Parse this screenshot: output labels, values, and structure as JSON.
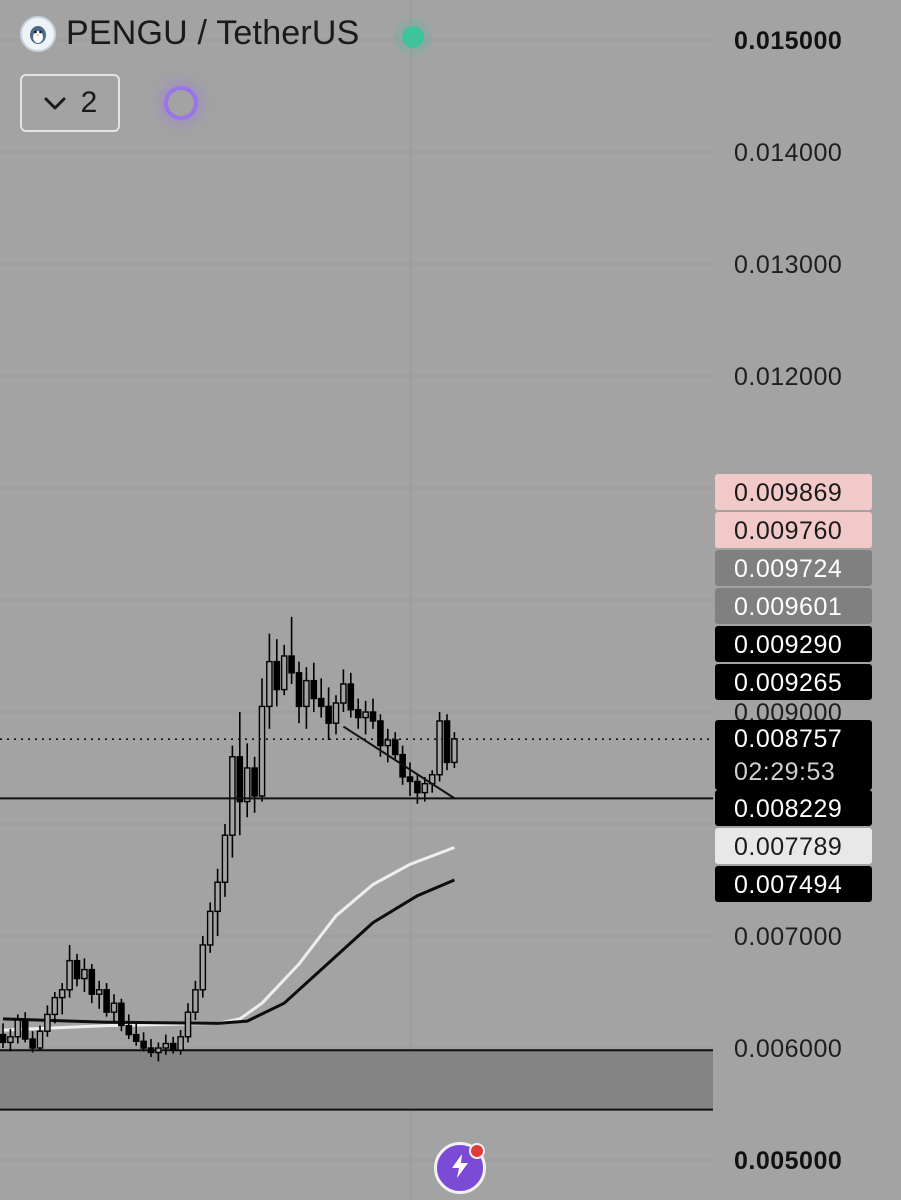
{
  "header": {
    "pair": "PENGU / TetherUS",
    "collapse_count": "2",
    "status_color": "#3fc39d"
  },
  "icons": {
    "logo": "penguin-logo-icon",
    "collapse": "chevron-down-icon",
    "loading": "loading-ring-icon",
    "quick_action": "lightning-bolt-icon"
  },
  "chart_data": {
    "type": "candlestick",
    "ylim": [
      0.005,
      0.0155
    ],
    "y_ticks": [
      {
        "value": 0.015,
        "label": "0.015000",
        "bold": true
      },
      {
        "value": 0.014,
        "label": "0.014000",
        "bold": false
      },
      {
        "value": 0.013,
        "label": "0.013000",
        "bold": false
      },
      {
        "value": 0.012,
        "label": "0.012000",
        "bold": false
      },
      {
        "value": 0.009,
        "label": "0.009000",
        "bold": false
      },
      {
        "value": 0.007,
        "label": "0.007000",
        "bold": false
      },
      {
        "value": 0.006,
        "label": "0.006000",
        "bold": false
      },
      {
        "value": 0.005,
        "label": "0.005000",
        "bold": true
      }
    ],
    "price_tags": [
      {
        "value": 0.009869,
        "label": "0.009869",
        "bg": "#f2c9c9",
        "fg": "#1a1a1a"
      },
      {
        "value": 0.00976,
        "label": "0.009760",
        "bg": "#f2c9c9",
        "fg": "#1a1a1a"
      },
      {
        "value": 0.009724,
        "label": "0.009724",
        "bg": "#808080",
        "fg": "#ffffff"
      },
      {
        "value": 0.009601,
        "label": "0.009601",
        "bg": "#808080",
        "fg": "#ffffff"
      },
      {
        "value": 0.00929,
        "label": "0.009290",
        "bg": "#000000",
        "fg": "#ffffff"
      },
      {
        "value": 0.009265,
        "label": "0.009265",
        "bg": "#000000",
        "fg": "#ffffff"
      },
      {
        "value": 0.008757,
        "label": "0.008757",
        "bg": "#000000",
        "fg": "#ffffff",
        "countdown": "02:29:53"
      },
      {
        "value": 0.008229,
        "label": "0.008229",
        "bg": "#000000",
        "fg": "#ffffff"
      },
      {
        "value": 0.007789,
        "label": "0.007789",
        "bg": "#e8e8e8",
        "fg": "#1a1a1a"
      },
      {
        "value": 0.007494,
        "label": "0.007494",
        "bg": "#000000",
        "fg": "#ffffff"
      }
    ],
    "current_price": 0.008757,
    "support_line": 0.008229,
    "zone": [
      0.00545,
      0.00598
    ],
    "zone_color": "#848484",
    "trendline": {
      "from": {
        "index": 46,
        "price": 0.00887
      },
      "to": {
        "index": 61,
        "price": 0.00823
      }
    },
    "ma_fast": [
      {
        "index": 0,
        "value": 0.00616
      },
      {
        "index": 14,
        "value": 0.0062
      },
      {
        "index": 29,
        "value": 0.00622
      },
      {
        "index": 32,
        "value": 0.00626
      },
      {
        "index": 35,
        "value": 0.0064
      },
      {
        "index": 40,
        "value": 0.00675
      },
      {
        "index": 45,
        "value": 0.00718
      },
      {
        "index": 50,
        "value": 0.00746
      },
      {
        "index": 55,
        "value": 0.00764
      },
      {
        "index": 61,
        "value": 0.00779
      }
    ],
    "ma_slow": [
      {
        "index": 0,
        "value": 0.00626
      },
      {
        "index": 14,
        "value": 0.00623
      },
      {
        "index": 29,
        "value": 0.00622
      },
      {
        "index": 33,
        "value": 0.00624
      },
      {
        "index": 38,
        "value": 0.0064
      },
      {
        "index": 43,
        "value": 0.0067
      },
      {
        "index": 50,
        "value": 0.00712
      },
      {
        "index": 56,
        "value": 0.00736
      },
      {
        "index": 61,
        "value": 0.0075
      }
    ],
    "candles": [
      [
        0.00612,
        0.00622,
        0.006,
        0.00605
      ],
      [
        0.00605,
        0.00617,
        0.00597,
        0.0061
      ],
      [
        0.0061,
        0.0063,
        0.00604,
        0.00625
      ],
      [
        0.00625,
        0.00632,
        0.00605,
        0.00608
      ],
      [
        0.00608,
        0.00615,
        0.00596,
        0.006
      ],
      [
        0.006,
        0.0062,
        0.00598,
        0.00615
      ],
      [
        0.00615,
        0.00638,
        0.0061,
        0.0063
      ],
      [
        0.0063,
        0.0065,
        0.00622,
        0.00645
      ],
      [
        0.00645,
        0.00658,
        0.0063,
        0.00652
      ],
      [
        0.00652,
        0.00692,
        0.00645,
        0.00678
      ],
      [
        0.00678,
        0.00684,
        0.00655,
        0.00662
      ],
      [
        0.00662,
        0.0068,
        0.0065,
        0.0067
      ],
      [
        0.0067,
        0.00675,
        0.0064,
        0.00648
      ],
      [
        0.00648,
        0.0066,
        0.00635,
        0.00652
      ],
      [
        0.00652,
        0.00658,
        0.00628,
        0.00632
      ],
      [
        0.00632,
        0.00648,
        0.00622,
        0.0064
      ],
      [
        0.0064,
        0.00644,
        0.00615,
        0.0062
      ],
      [
        0.0062,
        0.0063,
        0.00608,
        0.00612
      ],
      [
        0.00612,
        0.00622,
        0.00602,
        0.00606
      ],
      [
        0.00606,
        0.00614,
        0.00597,
        0.006
      ],
      [
        0.006,
        0.00608,
        0.00592,
        0.00596
      ],
      [
        0.00596,
        0.00605,
        0.00588,
        0.006
      ],
      [
        0.006,
        0.00612,
        0.00594,
        0.00604
      ],
      [
        0.00604,
        0.0061,
        0.00595,
        0.00598
      ],
      [
        0.00598,
        0.00616,
        0.00594,
        0.0061
      ],
      [
        0.0061,
        0.0064,
        0.00605,
        0.00632
      ],
      [
        0.00632,
        0.0066,
        0.00625,
        0.00652
      ],
      [
        0.00652,
        0.007,
        0.00645,
        0.00692
      ],
      [
        0.00692,
        0.0073,
        0.00685,
        0.00722
      ],
      [
        0.00722,
        0.0076,
        0.007,
        0.00748
      ],
      [
        0.00748,
        0.008,
        0.00735,
        0.0079
      ],
      [
        0.0079,
        0.0087,
        0.0077,
        0.0086
      ],
      [
        0.0086,
        0.009,
        0.0079,
        0.0082
      ],
      [
        0.0082,
        0.00872,
        0.00806,
        0.0085
      ],
      [
        0.0085,
        0.0086,
        0.0081,
        0.00825
      ],
      [
        0.00825,
        0.0093,
        0.0082,
        0.00905
      ],
      [
        0.00905,
        0.0097,
        0.00885,
        0.00945
      ],
      [
        0.00945,
        0.00965,
        0.00905,
        0.0092
      ],
      [
        0.0092,
        0.0096,
        0.00915,
        0.0095
      ],
      [
        0.0095,
        0.00985,
        0.00925,
        0.00935
      ],
      [
        0.00935,
        0.00945,
        0.0089,
        0.00905
      ],
      [
        0.00905,
        0.0094,
        0.00885,
        0.00928
      ],
      [
        0.00928,
        0.00944,
        0.009,
        0.00912
      ],
      [
        0.00912,
        0.0093,
        0.00895,
        0.00905
      ],
      [
        0.00905,
        0.00922,
        0.00875,
        0.0089
      ],
      [
        0.0089,
        0.00915,
        0.0088,
        0.00908
      ],
      [
        0.00908,
        0.00938,
        0.009,
        0.00925
      ],
      [
        0.00925,
        0.00935,
        0.00895,
        0.00902
      ],
      [
        0.00902,
        0.00912,
        0.00885,
        0.00895
      ],
      [
        0.00895,
        0.0091,
        0.0088,
        0.009
      ],
      [
        0.009,
        0.00912,
        0.00885,
        0.00892
      ],
      [
        0.00892,
        0.00898,
        0.0086,
        0.0087
      ],
      [
        0.0087,
        0.00885,
        0.00855,
        0.00875
      ],
      [
        0.00875,
        0.00882,
        0.00858,
        0.00862
      ],
      [
        0.00862,
        0.0087,
        0.00835,
        0.00842
      ],
      [
        0.00842,
        0.00855,
        0.00825,
        0.00838
      ],
      [
        0.00838,
        0.00845,
        0.00818,
        0.00828
      ],
      [
        0.00828,
        0.00842,
        0.0082,
        0.00836
      ],
      [
        0.00836,
        0.00848,
        0.00828,
        0.00844
      ],
      [
        0.00844,
        0.009,
        0.00838,
        0.00892
      ],
      [
        0.00892,
        0.00898,
        0.00848,
        0.00855
      ],
      [
        0.00855,
        0.00882,
        0.0085,
        0.00876
      ]
    ]
  }
}
